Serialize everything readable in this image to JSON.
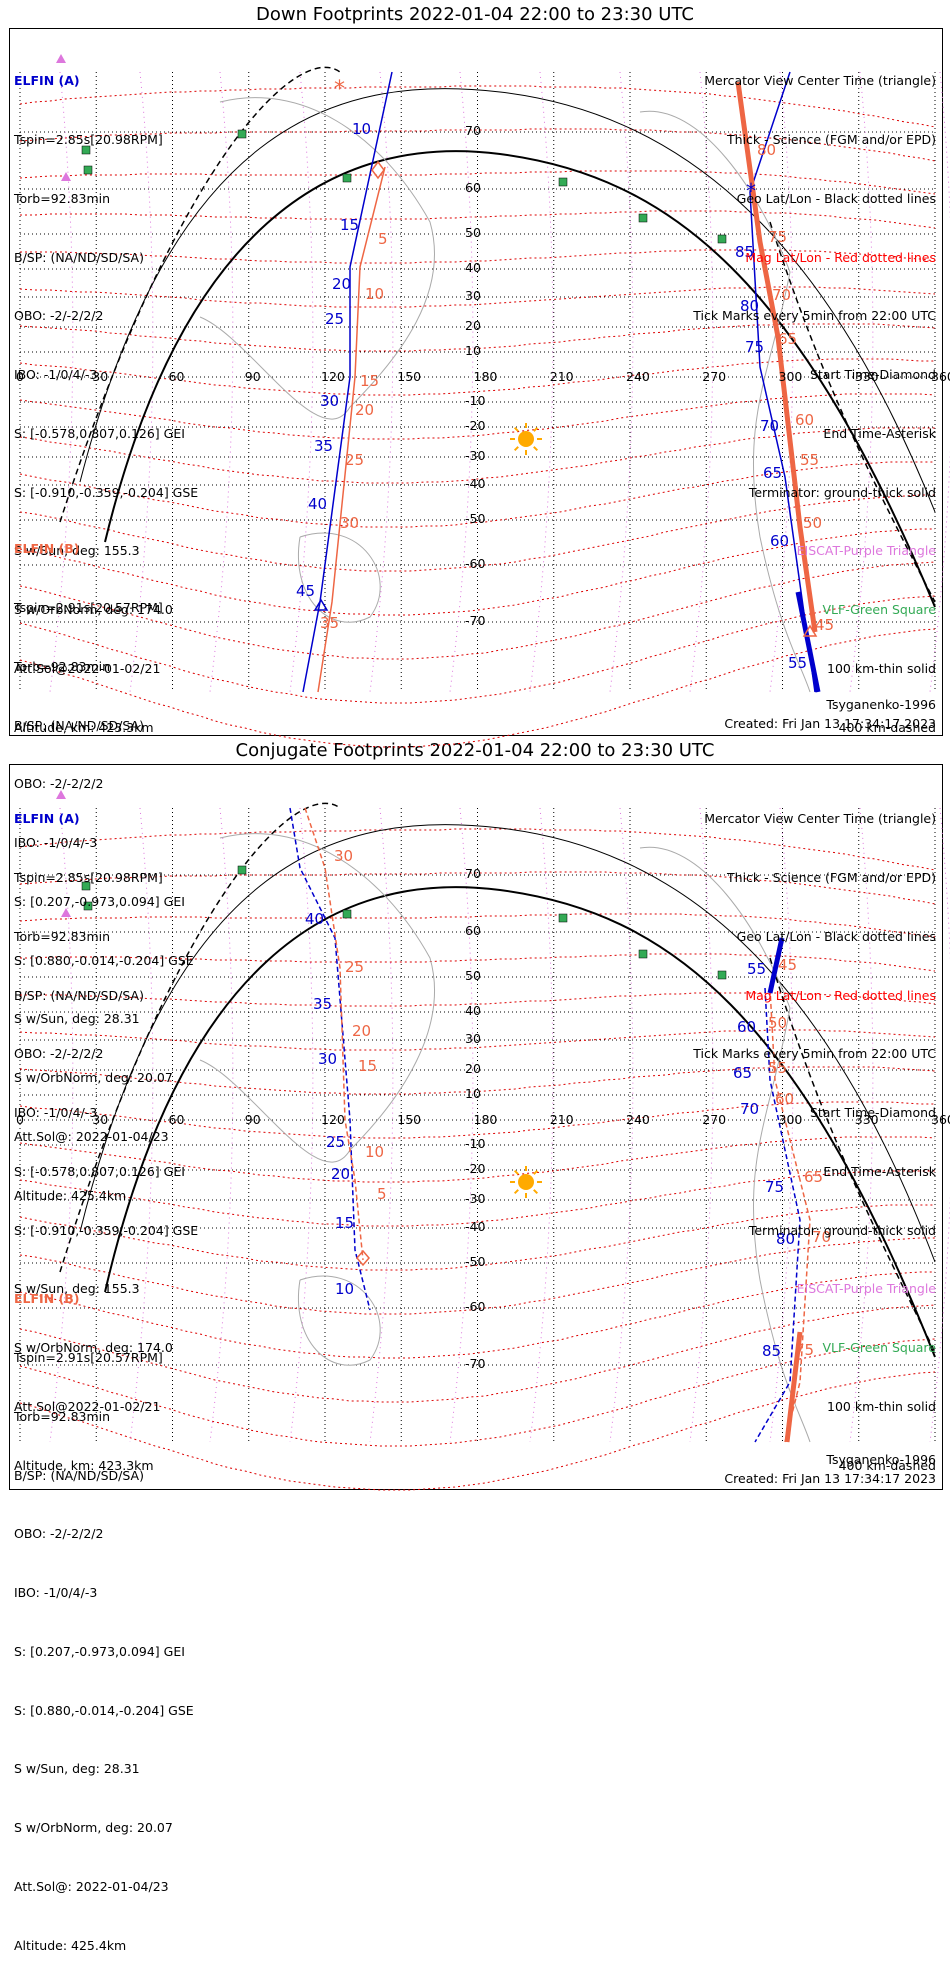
{
  "panels": [
    {
      "title": "Down Footprints 2022-01-04 22:00 to 23:30 UTC",
      "elfin_a": {
        "header": "ELFIN (A)",
        "lines": [
          "Tspin=2.85s[20.98RPM]",
          "Torb=92.83min",
          "B/SP: (NA/ND/SD/SA)",
          "OBO: -2/-2/2/2",
          "IBO: -1/0/4/-3",
          "S: [-0.578,0.807,0.126] GEI",
          "S: [-0.910,-0.359,-0.204] GSE",
          "S w/Sun, deg: 155.3",
          "S w/OrbNorm, deg: 174.0",
          "Att.Sol@2022-01-02/21",
          "Altitude, km: 423.3km"
        ]
      },
      "elfin_b": {
        "header": "ELFIN (B)",
        "lines": [
          "Tspin=2.91s[20.57RPM]",
          "Torb=92.83min",
          "B/SP: (NA/ND/SD/SA)",
          "OBO: -2/-2/2/2",
          "IBO: -1/0/4/-3",
          "S: [0.207,-0.973,0.094] GEI",
          "S: [0.880,-0.014,-0.204] GSE",
          "S w/Sun, deg: 28.31",
          "S w/OrbNorm, deg: 20.07",
          "Att.Sol@: 2022-01-04/23",
          "Altitude: 425.4km"
        ]
      },
      "model": "Tsyganenko-1996",
      "created": "Created: Fri Jan 13 17:34:17 2023",
      "blue_labels": [
        "10",
        "15",
        "20",
        "25",
        "30",
        "35",
        "40",
        "45",
        "85",
        "80",
        "75",
        "70",
        "65",
        "60",
        "55"
      ],
      "red_labels": [
        "5",
        "10",
        "15",
        "20",
        "25",
        "30",
        "35",
        "80",
        "75",
        "70",
        "65",
        "60",
        "55",
        "50",
        "45"
      ]
    },
    {
      "title": "Conjugate Footprints 2022-01-04 22:00 to 23:30 UTC",
      "elfin_a": {
        "header": "ELFIN (A)",
        "lines": [
          "Tspin=2.85s[20.98RPM]",
          "Torb=92.83min",
          "B/SP: (NA/ND/SD/SA)",
          "OBO: -2/-2/2/2",
          "IBO: -1/0/4/-3",
          "S: [-0.578,0.807,0.126] GEI",
          "S: [-0.910,-0.359,-0.204] GSE",
          "S w/Sun, deg: 155.3",
          "S w/OrbNorm, deg: 174.0",
          "Att.Sol@2022-01-02/21",
          "Altitude, km: 423.3km"
        ]
      },
      "elfin_b": {
        "header": "ELFIN (B)",
        "lines": [
          "Tspin=2.91s[20.57RPM]",
          "Torb=92.83min",
          "B/SP: (NA/ND/SD/SA)",
          "OBO: -2/-2/2/2",
          "IBO: -1/0/4/-3",
          "S: [0.207,-0.973,0.094] GEI",
          "S: [0.880,-0.014,-0.204] GSE",
          "S w/Sun, deg: 28.31",
          "S w/OrbNorm, deg: 20.07",
          "Att.Sol@: 2022-01-04/23",
          "Altitude: 425.4km"
        ]
      },
      "model": "Tsyganenko-1996",
      "created": "Created: Fri Jan 13 17:34:17 2023",
      "blue_labels": [
        "40",
        "35",
        "30",
        "25",
        "20",
        "15",
        "10",
        "55",
        "60",
        "65",
        "70",
        "75",
        "80",
        "85"
      ],
      "red_labels": [
        "30",
        "25",
        "20",
        "15",
        "10",
        "5",
        "45",
        "50",
        "55",
        "60",
        "65",
        "70",
        "75"
      ]
    }
  ],
  "legend": [
    {
      "text": "Mercator View Center Time (triangle)",
      "color": "#000000"
    },
    {
      "text": "Thick - Science (FGM and/or EPD)",
      "color": "#000000"
    },
    {
      "text": "Geo Lat/Lon - Black dotted lines",
      "color": "#000000"
    },
    {
      "text": "Mag Lat/Lon - Red dotted lines",
      "color": "#ff0000"
    },
    {
      "text": "Tick Marks every 5min from 22:00 UTC",
      "color": "#000000"
    },
    {
      "text": "Start Time-Diamond",
      "color": "#000000"
    },
    {
      "text": "End Time-Asterisk",
      "color": "#000000"
    },
    {
      "text": "Terminator: ground-thick solid",
      "color": "#000000"
    },
    {
      "text": "EISCAT-Purple Triangle",
      "color": "#dd77dd"
    },
    {
      "text": "VLF-Green Square",
      "color": "#33aa55"
    },
    {
      "text": "100 km-thin solid",
      "color": "#000000"
    },
    {
      "text": "400 km-dashed",
      "color": "#000000"
    }
  ],
  "lon_ticks": [
    "0",
    "30",
    "60",
    "90",
    "120",
    "150",
    "180",
    "210",
    "240",
    "270",
    "300",
    "330",
    "360"
  ],
  "lat_ticks": [
    "70",
    "60",
    "50",
    "40",
    "30",
    "20",
    "10",
    "-10",
    "-20",
    "-30",
    "-40",
    "-50",
    "-60",
    "-70"
  ],
  "colors": {
    "elfin_a": "#0000cc",
    "elfin_b": "#ee6644",
    "mag_grid": "#dd0000",
    "geo_grid": "#000000",
    "eiscat": "#dd77dd",
    "vlf": "#33aa55",
    "sun": "#ffaa00"
  }
}
